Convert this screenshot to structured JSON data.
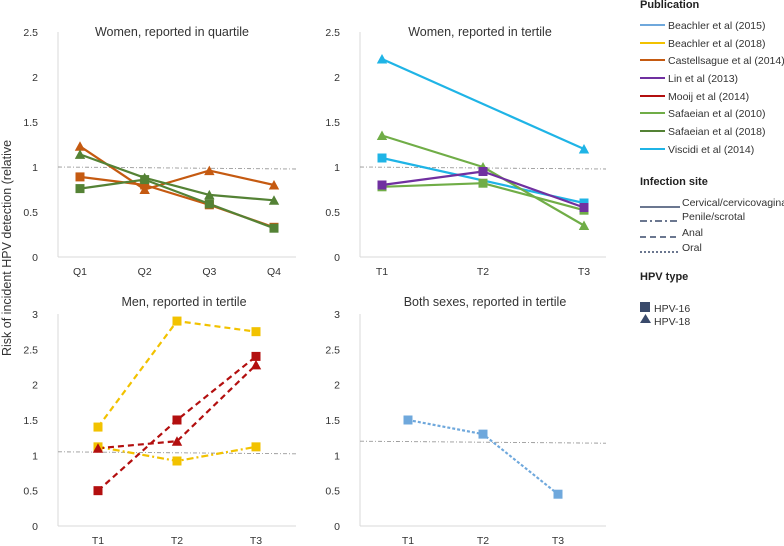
{
  "figure": {
    "y_axis_label": "Risk of incident HPV detection (relative",
    "colors": {
      "beachler2015": "#6fa8dc",
      "beachler2018": "#f2c200",
      "castellsague2014": "#c55a11",
      "lin2013": "#7030a0",
      "mooij2014": "#b30f0f",
      "safaeian2010": "#70ad47",
      "safaeian2018": "#548235",
      "viscidi2014": "#1fb4e6",
      "reference_line": "#999999",
      "legend_line": "#3a4a6b"
    }
  },
  "legend": {
    "publication_title": "Publication",
    "publications": [
      {
        "label": "Beachler et al (2015)",
        "color": "#6fa8dc"
      },
      {
        "label": "Beachler et al (2018)",
        "color": "#f2c200"
      },
      {
        "label": "Castellsague et al (2014)",
        "color": "#c55a11"
      },
      {
        "label": "Lin et al (2013)",
        "color": "#7030a0"
      },
      {
        "label": "Mooij et al (2014)",
        "color": "#b30f0f"
      },
      {
        "label": "Safaeian et al (2010)",
        "color": "#70ad47"
      },
      {
        "label": "Safaeian et al (2018)",
        "color": "#548235"
      },
      {
        "label": "Viscidi et al (2014)",
        "color": "#1fb4e6"
      }
    ],
    "site_title": "Infection site",
    "sites": [
      {
        "label": "Cervical/cervicovaginal",
        "dash": "none"
      },
      {
        "label": "Penile/scrotal",
        "dash": "dashdot"
      },
      {
        "label": "Anal",
        "dash": "dash"
      },
      {
        "label": "Oral",
        "dash": "dot"
      }
    ],
    "type_title": "HPV type",
    "types": [
      {
        "label": "HPV-16",
        "marker": "square"
      },
      {
        "label": "HPV-18",
        "marker": "triangle"
      }
    ]
  },
  "chart_data": [
    {
      "type": "line",
      "title": "Women, reported in quartile",
      "categories": [
        "Q1",
        "Q2",
        "Q3",
        "Q4"
      ],
      "ylim": [
        0,
        2.5
      ],
      "yticks": [
        "0",
        "0.5",
        "1",
        "1.5",
        "2",
        "2.5"
      ],
      "reference_value": 1.0,
      "series": [
        {
          "name": "Castellsague et al (2014)",
          "type": "HPV-16",
          "site": "Cervical/cervicovaginal",
          "color": "#c55a11",
          "values": [
            0.89,
            0.8,
            0.58,
            0.33
          ]
        },
        {
          "name": "Castellsague et al (2014)",
          "type": "HPV-18",
          "site": "Cervical/cervicovaginal",
          "color": "#c55a11",
          "values": [
            1.23,
            0.75,
            0.96,
            0.8
          ]
        },
        {
          "name": "Safaeian et al (2018)",
          "type": "HPV-16",
          "site": "Cervical/cervicovaginal",
          "color": "#548235",
          "values": [
            0.76,
            0.86,
            0.59,
            0.32
          ]
        },
        {
          "name": "Safaeian et al (2018)",
          "type": "HPV-18",
          "site": "Cervical/cervicovaginal",
          "color": "#548235",
          "values": [
            1.14,
            0.88,
            0.69,
            0.63
          ]
        }
      ]
    },
    {
      "type": "line",
      "title": "Women, reported in tertile",
      "categories": [
        "T1",
        "T2",
        "T3"
      ],
      "ylim": [
        0,
        2.5
      ],
      "yticks": [
        "0",
        "0.5",
        "1",
        "1.5",
        "2",
        "2.5"
      ],
      "reference_value": 1.0,
      "series": [
        {
          "name": "Viscidi et al (2014)",
          "type": "HPV-18",
          "site": "Cervical/cervicovaginal",
          "color": "#1fb4e6",
          "values": [
            2.2,
            null,
            1.2
          ]
        },
        {
          "name": "Viscidi et al (2014)",
          "type": "HPV-16",
          "site": "Cervical/cervicovaginal",
          "color": "#1fb4e6",
          "values": [
            1.1,
            null,
            0.6
          ]
        },
        {
          "name": "Safaeian et al (2010)",
          "type": "HPV-18",
          "site": "Cervical/cervicovaginal",
          "color": "#70ad47",
          "values": [
            1.35,
            1.0,
            0.35
          ]
        },
        {
          "name": "Safaeian et al (2010)",
          "type": "HPV-16",
          "site": "Cervical/cervicovaginal",
          "color": "#70ad47",
          "values": [
            0.78,
            0.82,
            0.52
          ]
        },
        {
          "name": "Lin et al (2013)",
          "type": "HPV-16",
          "site": "Cervical/cervicovaginal",
          "color": "#7030a0",
          "values": [
            0.8,
            0.95,
            0.55
          ]
        }
      ]
    },
    {
      "type": "line",
      "title": "Men, reported in tertile",
      "categories": [
        "T1",
        "T2",
        "T3"
      ],
      "ylim": [
        0,
        3
      ],
      "yticks": [
        "0",
        "0.5",
        "1",
        "1.5",
        "2",
        "2.5",
        "3"
      ],
      "reference_value": 1.05,
      "series": [
        {
          "name": "Beachler et al (2018)",
          "type": "HPV-16",
          "site": "Anal",
          "color": "#f2c200",
          "values": [
            1.4,
            2.9,
            2.75
          ]
        },
        {
          "name": "Beachler et al (2018)",
          "type": "HPV-16",
          "site": "Penile/scrotal",
          "color": "#f2c200",
          "values": [
            1.12,
            0.92,
            1.12
          ]
        },
        {
          "name": "Mooij et al (2014)",
          "type": "HPV-16",
          "site": "Anal",
          "color": "#b30f0f",
          "values": [
            0.5,
            1.5,
            2.4
          ]
        },
        {
          "name": "Mooij et al (2014)",
          "type": "HPV-18",
          "site": "Anal",
          "color": "#b30f0f",
          "values": [
            1.1,
            1.2,
            2.28
          ]
        }
      ]
    },
    {
      "type": "line",
      "title": "Both sexes, reported in tertile",
      "categories": [
        "T1",
        "T2",
        "T3"
      ],
      "ylim": [
        0,
        3
      ],
      "yticks": [
        "0",
        "0.5",
        "1",
        "1.5",
        "2",
        "2.5",
        "3"
      ],
      "reference_value": 1.2,
      "series": [
        {
          "name": "Beachler et al (2015)",
          "type": "HPV-16",
          "site": "Oral",
          "color": "#6fa8dc",
          "values": [
            1.5,
            1.3,
            0.45
          ]
        }
      ]
    }
  ]
}
